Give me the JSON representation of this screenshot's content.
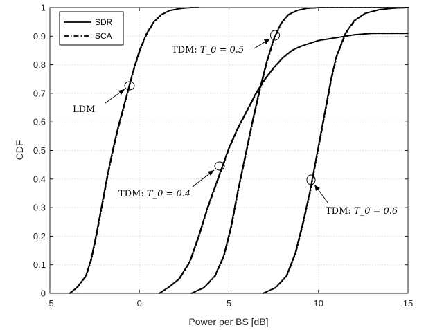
{
  "chart_data": {
    "type": "line",
    "title": "",
    "xlabel": "Power per BS [dB]",
    "ylabel": "CDF",
    "xlim": [
      -5,
      15
    ],
    "ylim": [
      0,
      1
    ],
    "xticks": [
      "-5",
      "0",
      "5",
      "10",
      "15"
    ],
    "yticks": [
      "0",
      "0.1",
      "0.2",
      "0.3",
      "0.4",
      "0.5",
      "0.6",
      "0.7",
      "0.8",
      "0.9",
      "1"
    ],
    "grid": true,
    "legend_position": "top-left",
    "legend": [
      {
        "name": "SDR",
        "style": "solid"
      },
      {
        "name": "SCA",
        "style": "dashdot"
      }
    ],
    "series": [
      {
        "curve": "LDM",
        "x": [
          -3.9,
          -3.5,
          -3.0,
          -2.7,
          -2.4,
          -2.1,
          -1.8,
          -1.5,
          -1.2,
          -0.9,
          -0.6,
          -0.3,
          0.0,
          0.4,
          0.8,
          1.2,
          1.7,
          2.3,
          2.9,
          3.3
        ],
        "y": [
          0.0,
          0.02,
          0.06,
          0.12,
          0.21,
          0.31,
          0.41,
          0.5,
          0.58,
          0.65,
          0.72,
          0.79,
          0.85,
          0.91,
          0.95,
          0.975,
          0.99,
          0.997,
          1.0,
          1.0
        ]
      },
      {
        "curve": "TDM T0=0.4",
        "x": [
          1.1,
          1.6,
          2.2,
          2.8,
          3.3,
          3.8,
          4.2,
          4.6,
          5.0,
          5.5,
          6.0,
          6.5,
          7.0,
          7.5,
          8.0,
          8.5,
          9.0,
          10.0,
          11.0,
          12.0,
          13.0,
          15.0
        ],
        "y": [
          0.0,
          0.02,
          0.05,
          0.11,
          0.2,
          0.3,
          0.37,
          0.44,
          0.51,
          0.58,
          0.64,
          0.7,
          0.75,
          0.79,
          0.825,
          0.85,
          0.865,
          0.885,
          0.895,
          0.905,
          0.91,
          0.91
        ]
      },
      {
        "curve": "TDM T0=0.5",
        "x": [
          2.9,
          3.6,
          4.2,
          4.7,
          5.1,
          5.5,
          5.9,
          6.3,
          6.7,
          7.1,
          7.5,
          7.9,
          8.3,
          8.8,
          9.3,
          10.0,
          11.0,
          15.0
        ],
        "y": [
          0.0,
          0.02,
          0.06,
          0.13,
          0.23,
          0.36,
          0.48,
          0.6,
          0.71,
          0.81,
          0.89,
          0.945,
          0.975,
          0.99,
          0.997,
          1.0,
          1.0,
          1.0
        ]
      },
      {
        "curve": "TDM T0=0.6",
        "x": [
          6.9,
          7.6,
          8.2,
          8.7,
          9.1,
          9.5,
          9.8,
          10.1,
          10.4,
          10.7,
          11.0,
          11.5,
          12.0,
          12.6,
          13.4,
          14.2,
          15.0
        ],
        "y": [
          0.0,
          0.02,
          0.06,
          0.14,
          0.24,
          0.35,
          0.45,
          0.55,
          0.65,
          0.75,
          0.83,
          0.91,
          0.955,
          0.98,
          0.993,
          0.998,
          1.0
        ]
      }
    ],
    "annotations": [
      {
        "text": "LDM",
        "point": [
          -0.5,
          0.725
        ]
      },
      {
        "text": "TDM: ",
        "math": "T_0 = 0.4",
        "point": [
          4.6,
          0.44
        ]
      },
      {
        "text": "TDM: ",
        "math": "T_0 = 0.5",
        "point": [
          7.6,
          0.9
        ]
      },
      {
        "text": "TDM: ",
        "math": "T_0 = 0.6",
        "point": [
          9.6,
          0.395
        ]
      }
    ]
  }
}
